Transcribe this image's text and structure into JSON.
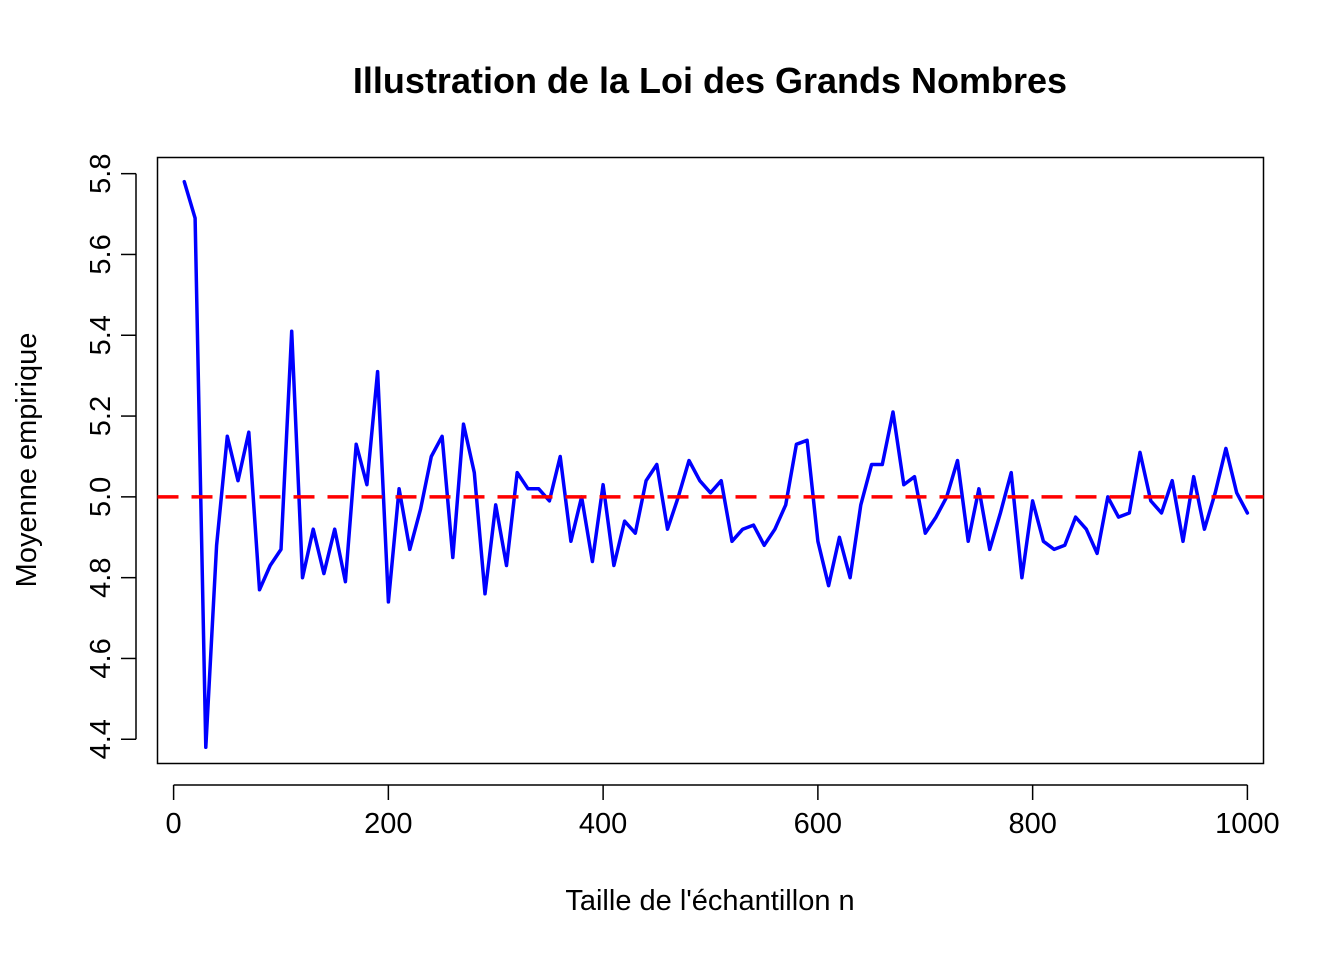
{
  "chart_data": {
    "type": "line",
    "title": "Illustration de la Loi des Grands Nombres",
    "xlabel": "Taille de l'échantillon n",
    "ylabel": "Moyenne empirique",
    "xlim": [
      -15,
      1015
    ],
    "ylim": [
      4.34,
      5.84
    ],
    "xticks": [
      "0",
      "200",
      "400",
      "600",
      "800",
      "1000"
    ],
    "yticks": [
      "4.4",
      "4.6",
      "4.8",
      "5.0",
      "5.2",
      "5.4",
      "5.6",
      "5.8"
    ],
    "grid": false,
    "legend": "none",
    "series": [
      {
        "color": "#0000ff",
        "x": [
          10,
          20,
          30,
          40,
          50,
          60,
          70,
          80,
          90,
          100,
          110,
          120,
          130,
          140,
          150,
          160,
          170,
          180,
          190,
          200,
          210,
          220,
          230,
          240,
          250,
          260,
          270,
          280,
          290,
          300,
          310,
          320,
          330,
          340,
          350,
          360,
          370,
          380,
          390,
          400,
          410,
          420,
          430,
          440,
          450,
          460,
          470,
          480,
          490,
          500,
          510,
          520,
          530,
          540,
          550,
          560,
          570,
          580,
          590,
          600,
          610,
          620,
          630,
          640,
          650,
          660,
          670,
          680,
          690,
          700,
          710,
          720,
          730,
          740,
          750,
          760,
          770,
          780,
          790,
          800,
          810,
          820,
          830,
          840,
          850,
          860,
          870,
          880,
          890,
          900,
          910,
          920,
          930,
          940,
          950,
          960,
          970,
          980,
          990,
          1000
        ],
        "y": [
          5.78,
          5.69,
          4.38,
          4.88,
          5.15,
          5.04,
          5.16,
          4.77,
          4.83,
          4.87,
          5.41,
          4.8,
          4.92,
          4.81,
          4.92,
          4.79,
          5.13,
          5.03,
          5.31,
          4.74,
          5.02,
          4.87,
          4.97,
          5.1,
          5.15,
          4.85,
          5.18,
          5.06,
          4.76,
          4.98,
          4.83,
          5.06,
          5.02,
          5.02,
          4.99,
          5.1,
          4.89,
          5.0,
          4.84,
          5.03,
          4.83,
          4.94,
          4.91,
          5.04,
          5.08,
          4.92,
          5.0,
          5.09,
          5.04,
          5.01,
          5.04,
          4.89,
          4.92,
          4.93,
          4.88,
          4.92,
          4.98,
          5.13,
          5.14,
          4.89,
          4.78,
          4.9,
          4.8,
          4.98,
          5.08,
          5.08,
          5.21,
          5.03,
          5.05,
          4.91,
          4.95,
          5.0,
          5.09,
          4.89,
          5.02,
          4.87,
          4.96,
          5.06,
          4.8,
          4.99,
          4.89,
          4.87,
          4.88,
          4.95,
          4.92,
          4.86,
          5.0,
          4.95,
          4.96,
          5.11,
          4.99,
          4.96,
          5.04,
          4.89,
          5.05,
          4.92,
          5.01,
          5.12,
          5.01,
          4.96
        ]
      }
    ],
    "reference_line": {
      "y": 5.0,
      "color": "#ff0000",
      "style": "dashed"
    }
  }
}
